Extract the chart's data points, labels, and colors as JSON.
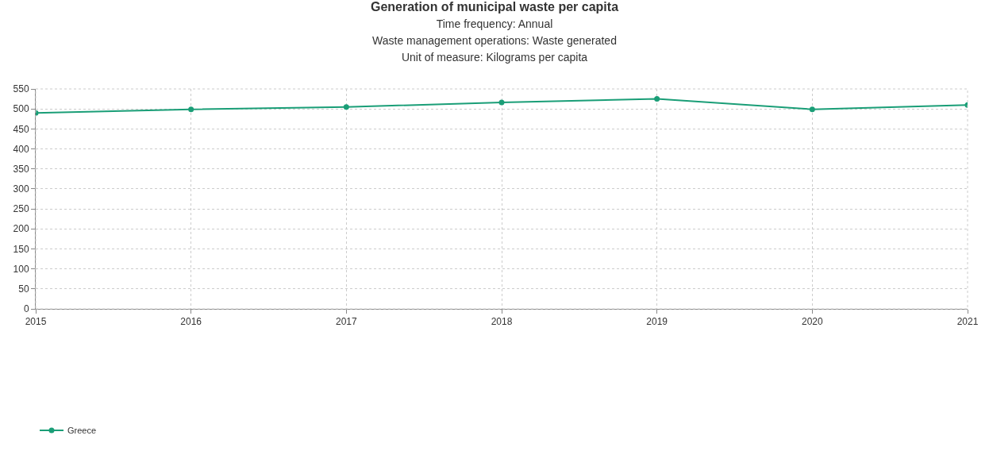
{
  "chart_data": {
    "type": "line",
    "title": "Generation of municipal waste per capita",
    "subtitle": "Time frequency: Annual\nWaste management operations: Waste generated\nUnit of measure: Kilograms per capita",
    "x": [
      2015,
      2016,
      2017,
      2018,
      2019,
      2020,
      2021
    ],
    "series": [
      {
        "name": "Greece",
        "color": "#1a9e77",
        "values": [
          490,
          499,
          505,
          516,
          525,
          499,
          510
        ]
      }
    ],
    "xlim": [
      2015,
      2021
    ],
    "xticks": [
      2015,
      2016,
      2017,
      2018,
      2019,
      2020,
      2021
    ],
    "ylim": [
      0,
      550
    ],
    "yticks": [
      0,
      50,
      100,
      150,
      200,
      250,
      300,
      350,
      400,
      450,
      500,
      550
    ],
    "grid": true,
    "legend": "bottom left",
    "marker": "circle",
    "line_style": "solid"
  }
}
